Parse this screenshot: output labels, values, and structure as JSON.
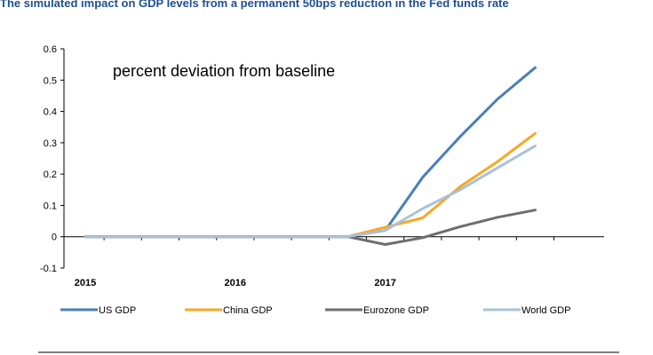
{
  "chart_data": {
    "type": "line",
    "title": "The simulated impact on GDP levels from a permanent 50bps reduction in the Fed funds rate",
    "annotation": "percent deviation from baseline",
    "x": [
      "2015 Q1",
      "2015 Q2",
      "2015 Q3",
      "2015 Q4",
      "2016 Q1",
      "2016 Q2",
      "2016 Q3",
      "2016 Q4",
      "2017 Q1",
      "2017 Q2",
      "2017 Q3",
      "2017 Q4",
      "2018 Q1"
    ],
    "x_tick_labels": [
      {
        "label": "2015",
        "index": 0
      },
      {
        "label": "2016",
        "index": 4
      },
      {
        "label": "2017",
        "index": 8
      }
    ],
    "ylim": [
      -0.1,
      0.6
    ],
    "yticks": [
      -0.1,
      0,
      0.1,
      0.2,
      0.3,
      0.4,
      0.5,
      0.6
    ],
    "ytick_labels": [
      "-0.1",
      "0",
      "0.1",
      "0.2",
      "0.3",
      "0.4",
      "0.5",
      "0.6"
    ],
    "grid": false,
    "legend_position": "bottom",
    "series": [
      {
        "name": "US GDP",
        "color": "#4a7ebb",
        "values": [
          0,
          0,
          0,
          0,
          0,
          0,
          0,
          0,
          0.02,
          0.19,
          0.32,
          0.44,
          0.54
        ]
      },
      {
        "name": "China GDP",
        "color": "#f7a823",
        "values": [
          0,
          0,
          0,
          0,
          0,
          0,
          0,
          0,
          0.03,
          0.06,
          0.16,
          0.24,
          0.33
        ]
      },
      {
        "name": "Eurozone GDP",
        "color": "#6e6e6e",
        "values": [
          0,
          0,
          0,
          0,
          0,
          0,
          0,
          0,
          -0.025,
          -0.003,
          0.032,
          0.062,
          0.085
        ]
      },
      {
        "name": "World GDP",
        "color": "#a9c1db",
        "values": [
          0,
          0,
          0,
          0,
          0,
          0,
          0,
          0,
          0.02,
          0.09,
          0.15,
          0.22,
          0.29
        ]
      }
    ]
  }
}
